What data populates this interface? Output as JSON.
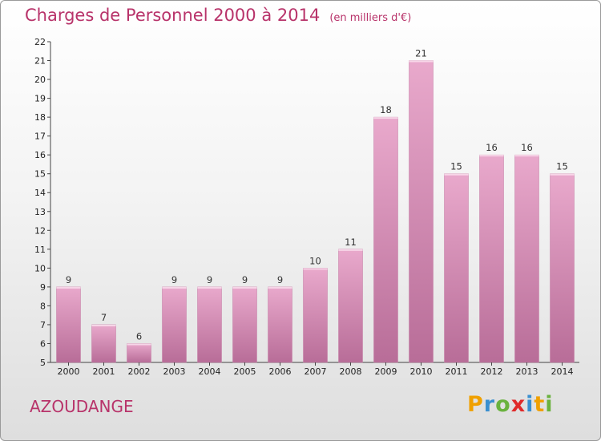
{
  "chart_data": {
    "type": "bar",
    "title": "Charges de Personnel 2000 à 2014",
    "subtitle": "(en milliers d'€)",
    "categories": [
      "2000",
      "2001",
      "2002",
      "2003",
      "2004",
      "2005",
      "2006",
      "2007",
      "2008",
      "2009",
      "2010",
      "2011",
      "2012",
      "2013",
      "2014"
    ],
    "values": [
      9,
      7,
      6,
      9,
      9,
      9,
      9,
      10,
      11,
      18,
      21,
      15,
      16,
      16,
      15
    ],
    "ylim": [
      5,
      22
    ],
    "yticks": [
      5,
      6,
      7,
      8,
      9,
      10,
      11,
      12,
      13,
      14,
      15,
      16,
      17,
      18,
      19,
      20,
      21,
      22
    ],
    "grid": false,
    "bar_color": "#d98db5",
    "title_color": "#b8336a"
  },
  "footer": {
    "location": "AZOUDANGE",
    "logo": [
      "P",
      "r",
      "o",
      "x",
      "i",
      "t",
      "i"
    ],
    "logo_colors": [
      "#f0a000",
      "#3a8fd0",
      "#6ab23e",
      "#e02a2a",
      "#3a8fd0",
      "#f0a000",
      "#6ab23e"
    ]
  }
}
